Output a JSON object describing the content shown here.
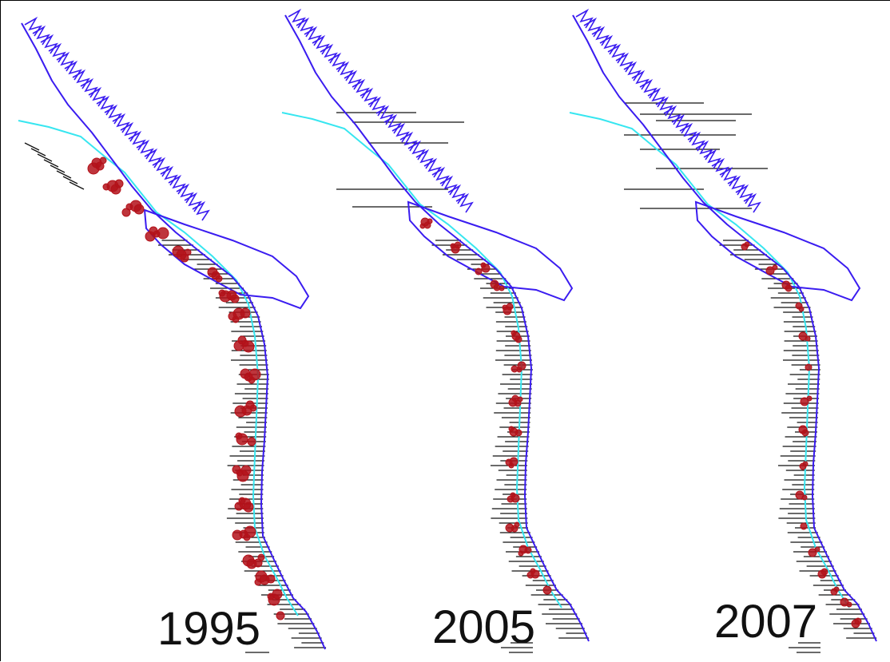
{
  "figure": {
    "colors": {
      "land_outline": "#3a1cf0",
      "shelf_contour": "#37e6f0",
      "catch_marker": "#b3121a",
      "survey_track": "#111111"
    },
    "panels": [
      {
        "label": "1995",
        "marker_coverage": "dense_south"
      },
      {
        "label": "2005",
        "marker_coverage": "moderate_mid"
      },
      {
        "label": "2007",
        "marker_coverage": "sparse_north_tracks"
      }
    ]
  }
}
